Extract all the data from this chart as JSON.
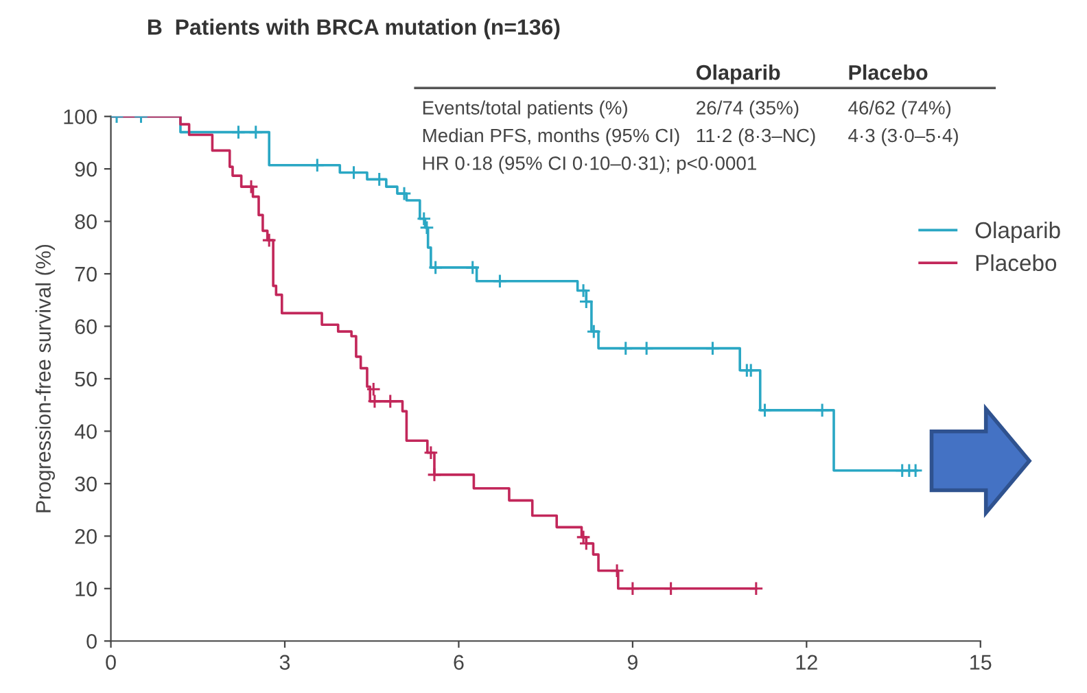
{
  "chart_data": {
    "type": "step",
    "title": "B  Patients with BRCA mutation (n=136)",
    "ylabel": "Progression-free survival (%)",
    "annotations": [
      "Olaparib",
      "Placebo",
      "Events/total patients (%)",
      "26/74 (35%)",
      "46/62 (74%)",
      "Median PFS, months (95% CI)",
      "11·2 (8·3–NC)",
      "4·3 (3·0–5·4)",
      "HR 0·18 (95% CI 0·10–0·31); p<0·0001"
    ],
    "xlim": [
      0,
      15
    ],
    "xticks": [
      0,
      3,
      6,
      9,
      12,
      15
    ],
    "ylim": [
      0,
      100
    ],
    "yticks": [
      0,
      10,
      20,
      30,
      40,
      50,
      60,
      70,
      80,
      90,
      100
    ],
    "grid": false,
    "legend": "top right",
    "series": [
      {
        "name": "Olaparib",
        "color": "#2aa7c4",
        "x": [
          0,
          1.2,
          2.73,
          3.95,
          4.42,
          4.75,
          4.94,
          5.1,
          5.33,
          5.42,
          5.47,
          5.52,
          6.31,
          8.05,
          8.2,
          8.29,
          8.41,
          10.85,
          11.2,
          12.47,
          13.9
        ],
        "values": [
          100,
          97,
          90.7,
          89.3,
          88,
          86.6,
          85.3,
          84,
          80.5,
          78.8,
          75,
          71.2,
          68.6,
          66.8,
          64.7,
          59,
          55.8,
          51.6,
          44,
          32.5,
          32.5
        ]
      },
      {
        "name": "Placebo",
        "color": "#c2275a",
        "x": [
          0,
          1.2,
          1.35,
          1.75,
          2.05,
          2.1,
          2.25,
          2.45,
          2.55,
          2.62,
          2.7,
          2.8,
          2.85,
          2.95,
          3.64,
          3.92,
          4.15,
          4.23,
          4.31,
          4.42,
          4.47,
          5.03,
          5.1,
          5.46,
          5.58,
          6.26,
          6.87,
          7.27,
          7.69,
          8.12,
          8.2,
          8.32,
          8.41,
          8.75,
          11.13
        ],
        "values": [
          100,
          98.5,
          96.5,
          93.5,
          90.4,
          88.7,
          86.6,
          84.7,
          81.2,
          78.2,
          76.4,
          67.7,
          66,
          62.5,
          60.3,
          59,
          58.1,
          54.2,
          52,
          48.5,
          45.7,
          43.8,
          38.2,
          35.9,
          31.7,
          29.1,
          26.8,
          23.9,
          21.7,
          19.8,
          18.6,
          16.5,
          13.4,
          10,
          10
        ]
      },
      {
        "color": "#2aa7c4",
        "type": "scatter",
        "marker": "cross",
        "x": [
          0.1,
          0.52,
          2.2,
          2.5,
          3.56,
          4.19,
          4.63,
          5.06,
          5.4,
          5.45,
          5.6,
          6.24,
          6.71,
          8.15,
          8.2,
          8.33,
          8.88,
          9.24,
          10.38,
          10.97,
          11.04,
          11.28,
          12.27,
          13.65,
          13.77,
          13.88
        ],
        "values": [
          100,
          100,
          97,
          97,
          90.7,
          89.3,
          88,
          85.3,
          80.5,
          78.8,
          71.2,
          71.2,
          68.6,
          66.8,
          64.7,
          59,
          55.8,
          55.8,
          55.8,
          51.6,
          51.6,
          44,
          44,
          32.5,
          32.5,
          32.5
        ]
      },
      {
        "color": "#c2275a",
        "type": "scatter",
        "marker": "cross",
        "x": [
          2.42,
          2.73,
          4.53,
          4.55,
          4.82,
          5.52,
          5.58,
          8.15,
          8.2,
          8.73,
          9.0,
          9.66,
          11.13
        ],
        "values": [
          86.6,
          76.4,
          48,
          45.7,
          45.7,
          35.9,
          31.7,
          19.8,
          18.6,
          13.4,
          10,
          10,
          10
        ]
      }
    ]
  }
}
